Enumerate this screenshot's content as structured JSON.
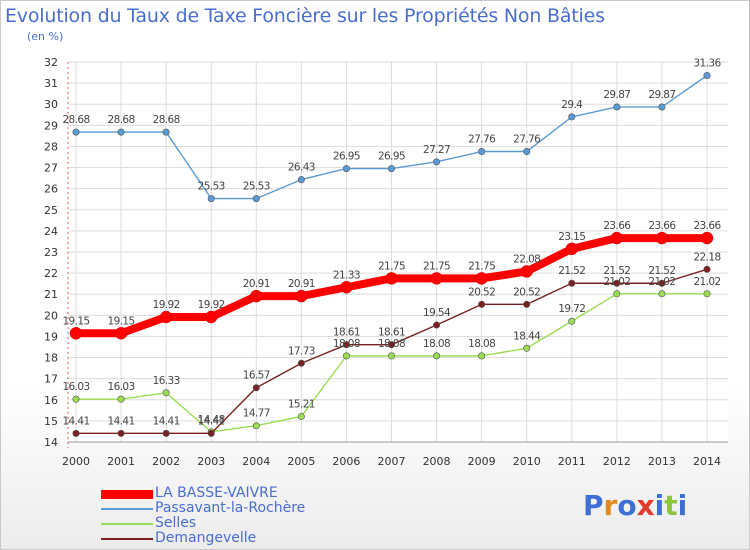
{
  "title": "Evolution du Taux de Taxe Foncière sur les Propriétés Non Bâties",
  "subtitle": "(en %)",
  "logo_text": "Proxiti",
  "chart_data": {
    "type": "line",
    "title": "Evolution du Taux de Taxe Foncière sur les Propriétés Non Bâties",
    "ylabel": "(en %)",
    "xlabel": "",
    "x": [
      2000,
      2001,
      2002,
      2003,
      2004,
      2005,
      2006,
      2007,
      2008,
      2009,
      2010,
      2011,
      2012,
      2013,
      2014
    ],
    "ylim": [
      14,
      32
    ],
    "yticks": [
      14,
      15,
      16,
      17,
      18,
      19,
      20,
      21,
      22,
      23,
      24,
      25,
      26,
      27,
      28,
      29,
      30,
      31,
      32
    ],
    "grid": true,
    "legend_position": "bottom-left",
    "series": [
      {
        "name": "LA BASSE-VAIVRE",
        "color": "#ff0000",
        "values": [
          19.15,
          19.15,
          19.92,
          19.92,
          20.91,
          20.91,
          21.33,
          21.75,
          21.75,
          21.75,
          22.08,
          23.15,
          23.66,
          23.66,
          23.66
        ],
        "labels": [
          "19.15",
          "19.15",
          "19.92",
          "19.92",
          "20.91",
          "20.91",
          "21.33",
          "21.75",
          "21.75",
          "21.75",
          "22.08",
          "23.15",
          "23.66",
          "23.66",
          "23.66"
        ]
      },
      {
        "name": "Passavant-la-Rochère",
        "color": "#5b9bd5",
        "values": [
          28.68,
          28.68,
          28.68,
          25.53,
          25.53,
          26.43,
          26.95,
          26.95,
          27.27,
          27.76,
          27.76,
          29.4,
          29.87,
          29.87,
          31.36
        ],
        "labels": [
          "28.68",
          "28.68",
          "28.68",
          "25.53",
          "25.53",
          "26.43",
          "26.95",
          "26.95",
          "27.27",
          "27.76",
          "27.76",
          "29.4",
          "29.87",
          "29.87",
          "31.36"
        ]
      },
      {
        "name": "Selles",
        "color": "#99dd55",
        "values": [
          16.03,
          16.03,
          16.33,
          14.48,
          14.77,
          15.21,
          18.08,
          18.08,
          18.08,
          18.08,
          18.44,
          19.72,
          21.02,
          21.02,
          21.02
        ],
        "labels": [
          "16.03",
          "16.03",
          "16.33",
          "14.48",
          "14.77",
          "15.21",
          "18.08",
          "18.08",
          "18.08",
          "18.08",
          "18.44",
          "19.72",
          "21.02",
          "21.02",
          "21.02"
        ]
      },
      {
        "name": "Demangevelle",
        "color": "#7a2020",
        "values": [
          14.41,
          14.41,
          14.41,
          14.41,
          16.57,
          17.73,
          18.61,
          18.61,
          19.54,
          20.52,
          20.52,
          21.52,
          21.52,
          21.52,
          22.18
        ],
        "labels": [
          "14.41",
          "14.41",
          "14.41",
          "14.41",
          "16.57",
          "17.73",
          "18.61",
          "18.61",
          "19.54",
          "20.52",
          "20.52",
          "21.52",
          "21.52",
          "21.52",
          "22.18"
        ]
      }
    ]
  }
}
